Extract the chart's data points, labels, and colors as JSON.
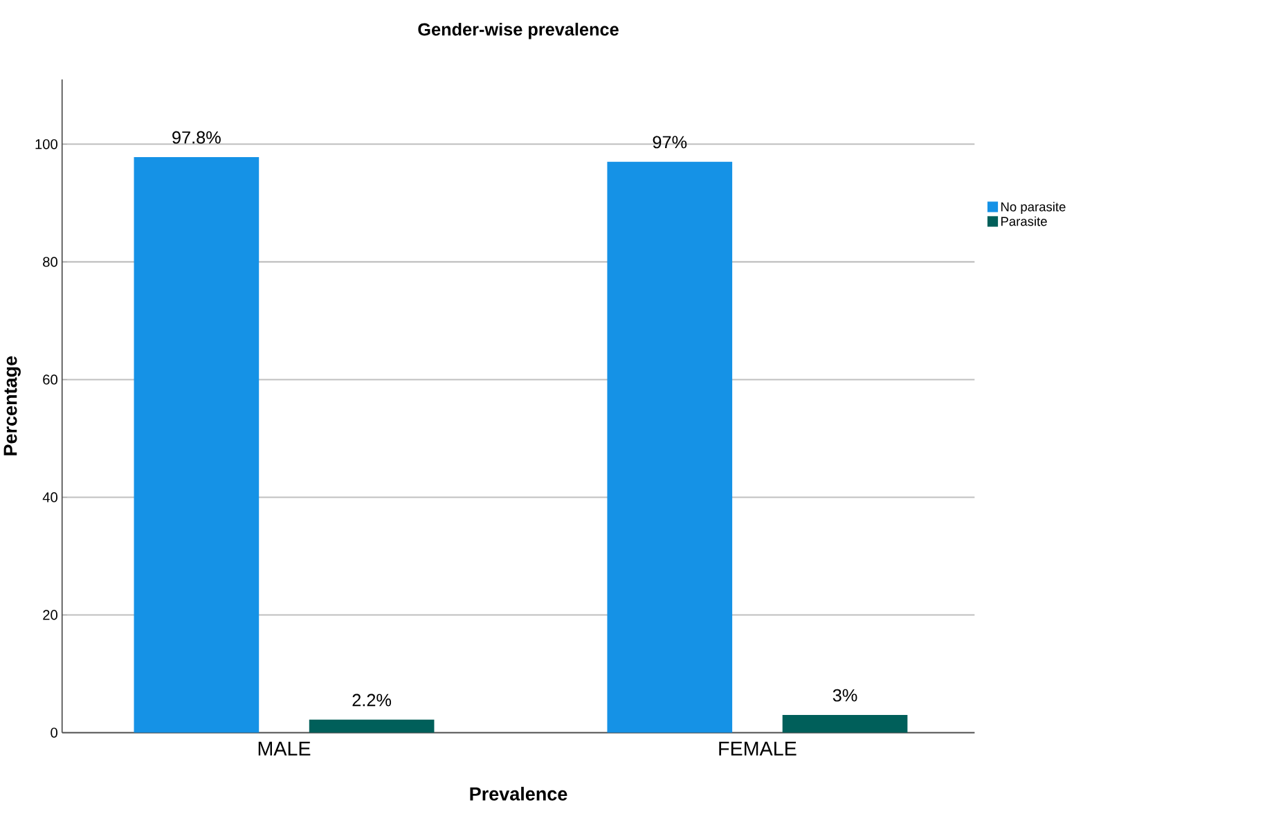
{
  "chart_data": {
    "type": "bar",
    "title": "Gender-wise prevalence",
    "xlabel": "Prevalence",
    "ylabel": "Percentage",
    "categories": [
      "MALE",
      "FEMALE"
    ],
    "series": [
      {
        "name": "No parasite",
        "color": "#1592e6",
        "values": [
          97.8,
          97
        ],
        "value_labels": [
          "97.8%",
          "97%"
        ]
      },
      {
        "name": "Parasite",
        "color": "#005f5a",
        "values": [
          2.2,
          3
        ],
        "value_labels": [
          "2.2%",
          "3%"
        ]
      }
    ],
    "ylim": [
      0,
      111
    ],
    "yticks": [
      0,
      20,
      40,
      60,
      80,
      100
    ],
    "grid": "y",
    "legend": "top right"
  }
}
